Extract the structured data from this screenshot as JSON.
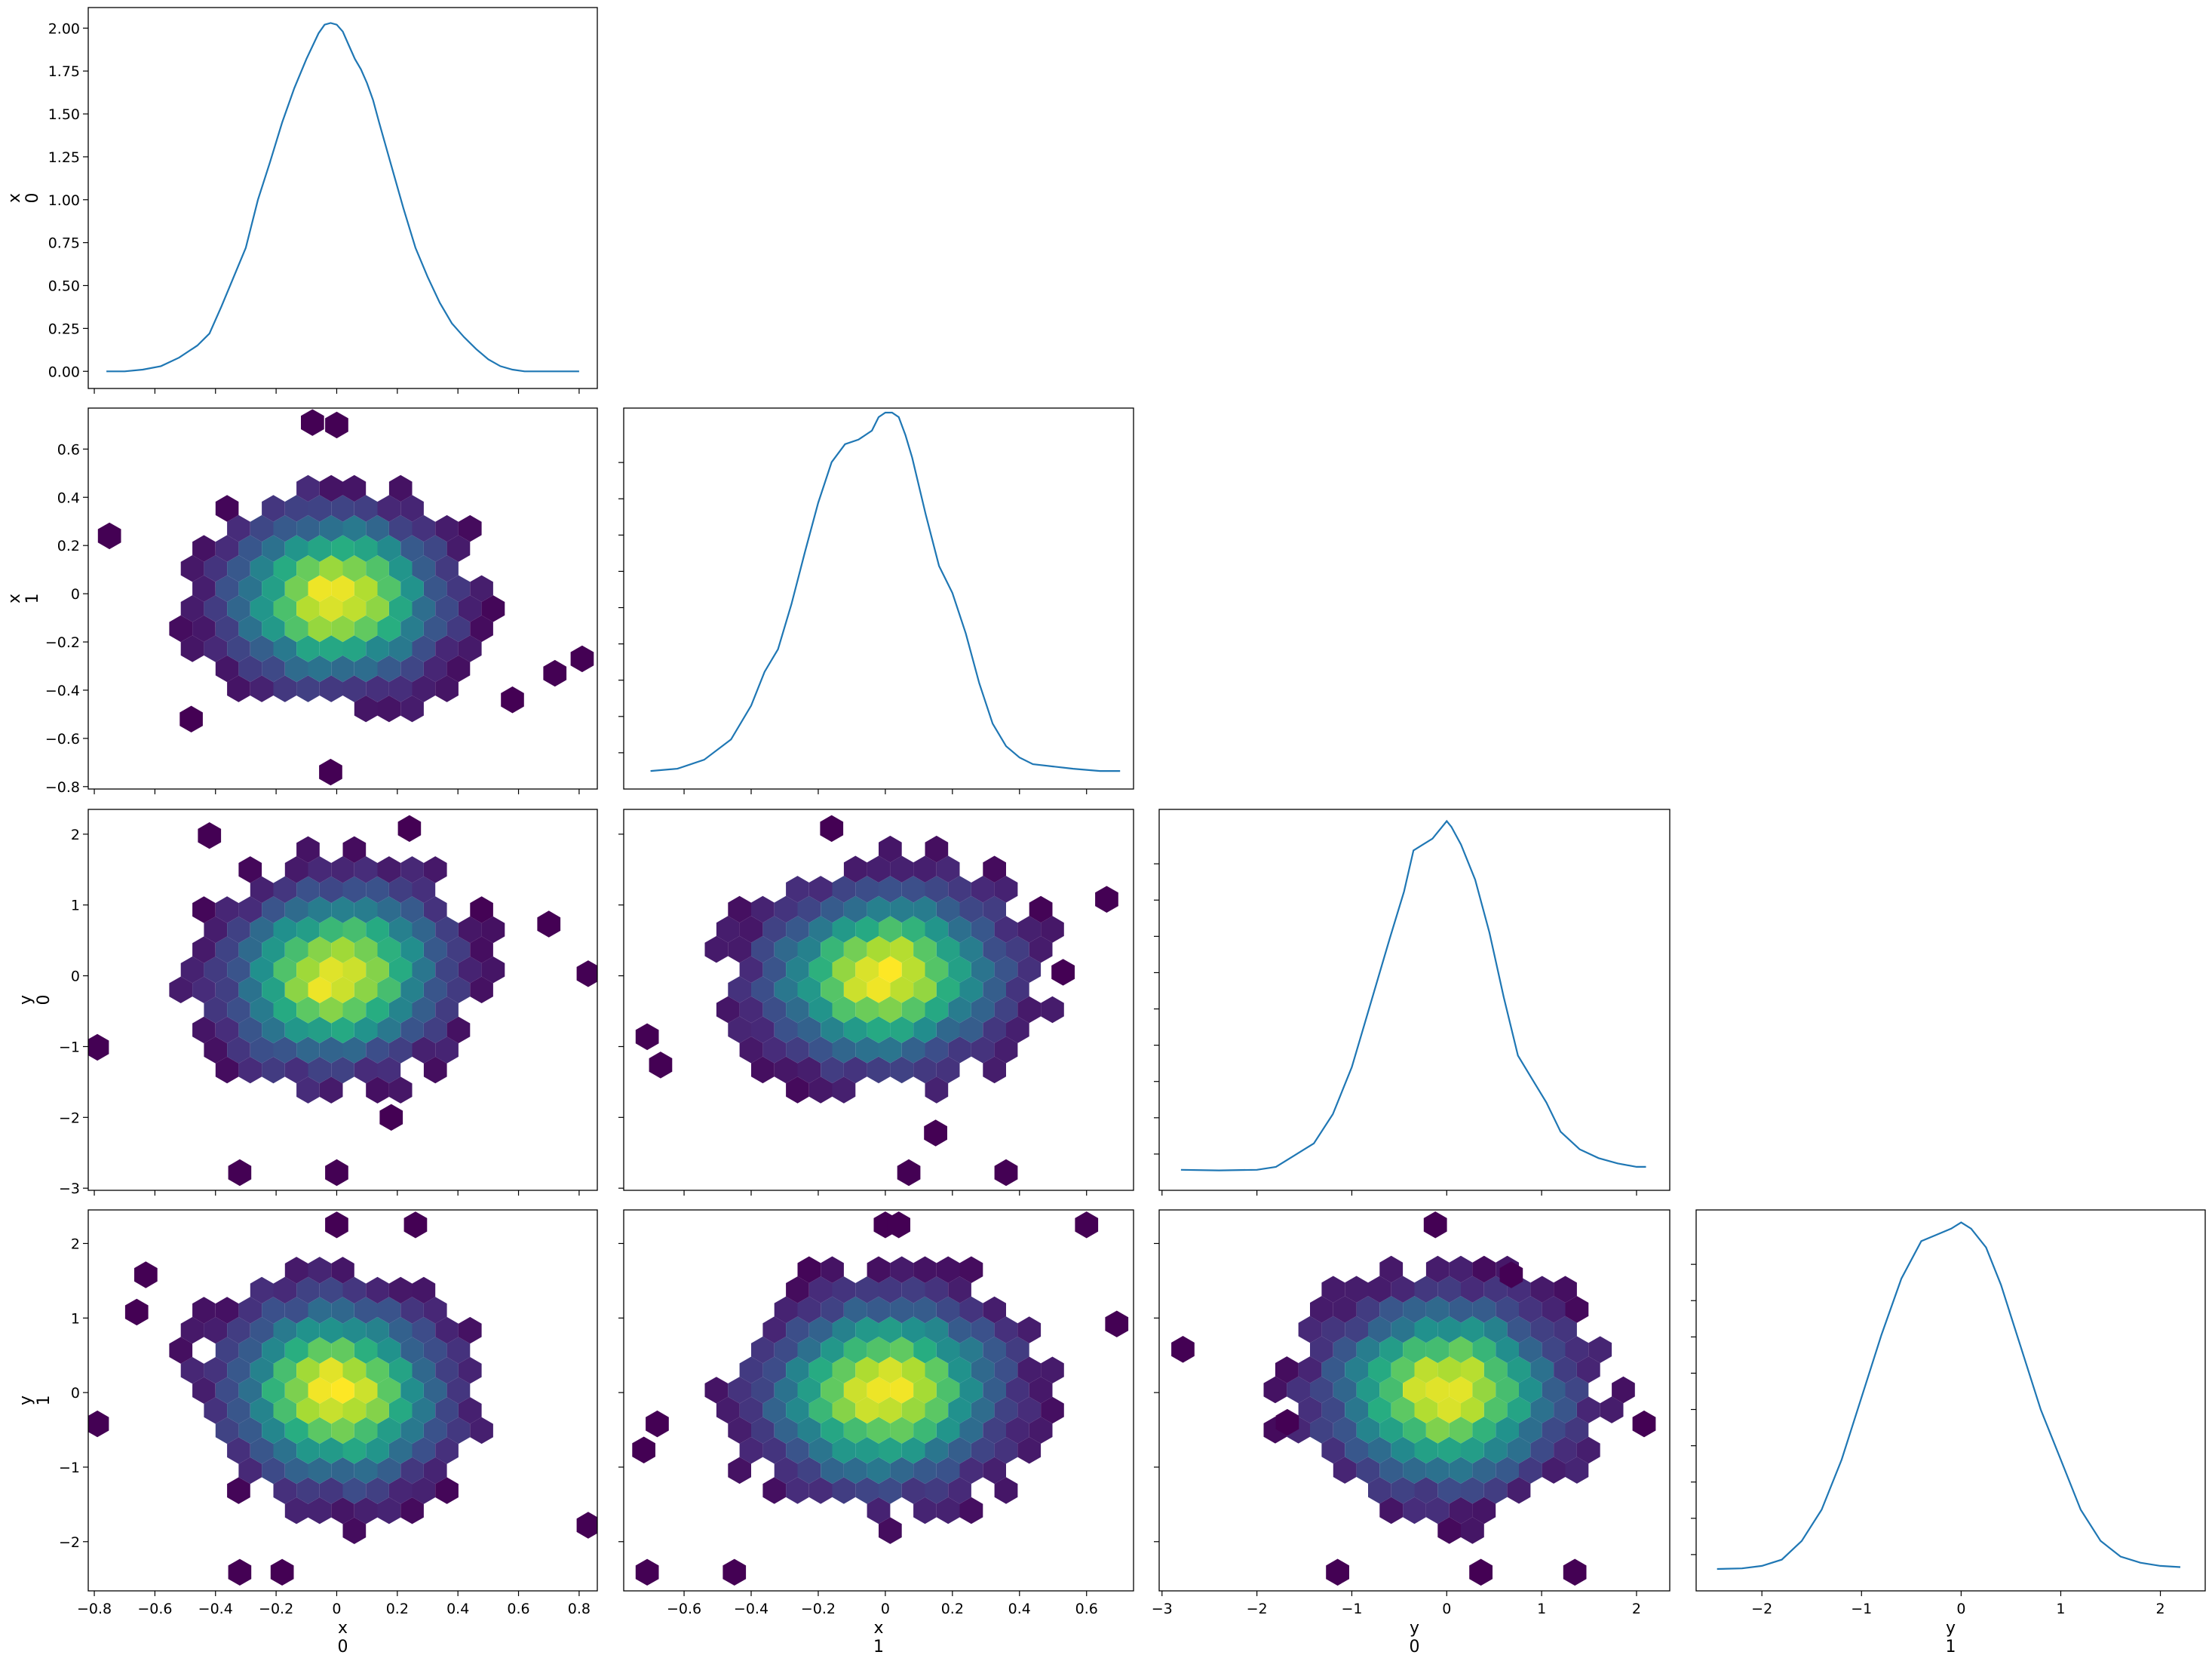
{
  "figure": {
    "type": "pair-plot",
    "colors": {
      "kde_line": "#1f77b4",
      "colormap": "viridis",
      "frame": "#000000"
    }
  },
  "variables": [
    {
      "name": "x",
      "index": "0"
    },
    {
      "name": "x",
      "index": "1"
    },
    {
      "name": "y",
      "index": "0"
    },
    {
      "name": "y",
      "index": "1"
    }
  ],
  "chart_data": [
    {
      "type": "line",
      "kind": "kde",
      "row": 0,
      "col": 0,
      "xlim": [
        -0.82,
        0.86
      ],
      "ylim": [
        -0.1,
        2.12
      ],
      "xticks": [
        -0.8,
        -0.6,
        -0.4,
        -0.2,
        0.0,
        0.2,
        0.4,
        0.6,
        0.8
      ],
      "yticks": [
        "0.00",
        "0.25",
        "0.50",
        "0.75",
        "1.00",
        "1.25",
        "1.50",
        "1.75",
        "2.00"
      ],
      "x": [
        -0.76,
        -0.7,
        -0.64,
        -0.58,
        -0.52,
        -0.46,
        -0.42,
        -0.38,
        -0.34,
        -0.3,
        -0.26,
        -0.22,
        -0.18,
        -0.14,
        -0.1,
        -0.06,
        -0.04,
        -0.02,
        0.0,
        0.02,
        0.04,
        0.06,
        0.08,
        0.1,
        0.12,
        0.14,
        0.18,
        0.22,
        0.26,
        0.3,
        0.34,
        0.38,
        0.42,
        0.46,
        0.5,
        0.54,
        0.58,
        0.62,
        0.68,
        0.74,
        0.8
      ],
      "y": [
        0.0,
        0.0,
        0.01,
        0.03,
        0.08,
        0.15,
        0.22,
        0.38,
        0.55,
        0.72,
        1.0,
        1.22,
        1.45,
        1.65,
        1.82,
        1.97,
        2.02,
        2.03,
        2.02,
        1.98,
        1.9,
        1.82,
        1.76,
        1.68,
        1.58,
        1.45,
        1.2,
        0.95,
        0.72,
        0.55,
        0.4,
        0.28,
        0.2,
        0.13,
        0.07,
        0.03,
        0.01,
        0.0,
        0.0,
        0.0,
        0.0
      ]
    },
    {
      "type": "heatmap",
      "kind": "hexbin",
      "row": 1,
      "col": 0,
      "xlim": [
        -0.82,
        0.86
      ],
      "ylim": [
        -0.81,
        0.77
      ],
      "xticks": [],
      "yticks": [
        -0.8,
        -0.6,
        -0.4,
        -0.2,
        0.0,
        0.2,
        0.4,
        0.6
      ],
      "center": [
        0.0,
        -0.02
      ],
      "sd": [
        0.2,
        0.2
      ],
      "corr": 0.0,
      "outliers": [
        [
          -0.75,
          0.24
        ],
        [
          0.81,
          -0.27
        ],
        [
          0.72,
          -0.33
        ],
        [
          0.58,
          -0.44
        ],
        [
          -0.02,
          -0.74
        ],
        [
          -0.48,
          -0.52
        ],
        [
          -0.08,
          0.71
        ],
        [
          0.0,
          0.7
        ]
      ]
    },
    {
      "type": "heatmap",
      "kind": "hexbin",
      "row": 2,
      "col": 0,
      "xlim": [
        -0.82,
        0.86
      ],
      "ylim": [
        -3.03,
        2.35
      ],
      "xticks": [],
      "yticks": [
        -3,
        -2,
        -1,
        0,
        1,
        2
      ],
      "center": [
        0.0,
        0.0
      ],
      "sd": [
        0.2,
        0.7
      ],
      "corr": 0.08,
      "outliers": [
        [
          -0.79,
          -1.01
        ],
        [
          0.83,
          0.03
        ],
        [
          0.7,
          0.73
        ],
        [
          -0.32,
          -2.78
        ],
        [
          0.0,
          -2.78
        ],
        [
          0.18,
          -2.0
        ],
        [
          -0.42,
          1.98
        ],
        [
          0.24,
          2.08
        ]
      ]
    },
    {
      "type": "heatmap",
      "kind": "hexbin",
      "row": 3,
      "col": 0,
      "xlim": [
        -0.82,
        0.86
      ],
      "ylim": [
        -2.66,
        2.45
      ],
      "xticks": [
        -0.8,
        -0.6,
        -0.4,
        -0.2,
        0.0,
        0.2,
        0.4,
        0.6,
        0.8
      ],
      "yticks": [
        -2,
        -1,
        0,
        1,
        2
      ],
      "center": [
        0.0,
        0.0
      ],
      "sd": [
        0.2,
        0.7
      ],
      "corr": -0.05,
      "outliers": [
        [
          -0.79,
          -0.42
        ],
        [
          0.83,
          -1.78
        ],
        [
          -0.63,
          1.58
        ],
        [
          -0.66,
          1.08
        ],
        [
          -0.32,
          -2.41
        ],
        [
          -0.18,
          -2.41
        ],
        [
          0.26,
          2.25
        ],
        [
          0.0,
          2.25
        ]
      ]
    },
    {
      "type": "line",
      "kind": "kde",
      "row": 1,
      "col": 1,
      "xlim": [
        -0.78,
        0.74
      ],
      "ylim": [
        -0.07,
        1.62
      ],
      "xticks": [],
      "yticks": [],
      "x": [
        -0.7,
        -0.62,
        -0.54,
        -0.46,
        -0.4,
        -0.36,
        -0.32,
        -0.28,
        -0.24,
        -0.2,
        -0.16,
        -0.12,
        -0.08,
        -0.04,
        -0.02,
        0.0,
        0.02,
        0.04,
        0.06,
        0.08,
        0.12,
        0.16,
        0.2,
        0.24,
        0.28,
        0.32,
        0.36,
        0.4,
        0.44,
        0.5,
        0.56,
        0.64,
        0.7
      ],
      "y": [
        0.01,
        0.02,
        0.06,
        0.15,
        0.3,
        0.45,
        0.55,
        0.75,
        0.98,
        1.2,
        1.38,
        1.46,
        1.48,
        1.52,
        1.58,
        1.6,
        1.6,
        1.58,
        1.5,
        1.4,
        1.15,
        0.92,
        0.8,
        0.62,
        0.4,
        0.22,
        0.12,
        0.07,
        0.04,
        0.03,
        0.02,
        0.01,
        0.01
      ]
    },
    {
      "type": "heatmap",
      "kind": "hexbin",
      "row": 2,
      "col": 1,
      "xlim": [
        -0.78,
        0.74
      ],
      "ylim": [
        -3.03,
        2.35
      ],
      "xticks": [],
      "yticks": [],
      "center": [
        0.0,
        0.0
      ],
      "sd": [
        0.2,
        0.7
      ],
      "corr": 0.05,
      "outliers": [
        [
          -0.71,
          -0.86
        ],
        [
          0.66,
          1.08
        ],
        [
          0.53,
          0.05
        ],
        [
          0.07,
          -2.78
        ],
        [
          0.36,
          -2.78
        ],
        [
          0.15,
          -2.22
        ],
        [
          -0.16,
          2.08
        ],
        [
          -0.67,
          -1.26
        ]
      ]
    },
    {
      "type": "heatmap",
      "kind": "hexbin",
      "row": 3,
      "col": 1,
      "xlim": [
        -0.78,
        0.74
      ],
      "ylim": [
        -2.66,
        2.45
      ],
      "xticks": [
        -0.8,
        -0.6,
        -0.4,
        -0.2,
        0.0,
        0.2,
        0.4,
        0.6
      ],
      "yticks": [],
      "center": [
        0.0,
        0.0
      ],
      "sd": [
        0.2,
        0.7
      ],
      "corr": 0.06,
      "outliers": [
        [
          -0.71,
          -2.41
        ],
        [
          -0.45,
          -2.41
        ],
        [
          0.69,
          0.92
        ],
        [
          0.6,
          2.25
        ],
        [
          -0.72,
          -0.77
        ],
        [
          -0.68,
          -0.42
        ],
        [
          0.0,
          2.25
        ],
        [
          0.04,
          2.25
        ]
      ]
    },
    {
      "type": "line",
      "kind": "kde",
      "row": 2,
      "col": 2,
      "xlim": [
        -3.03,
        2.35
      ],
      "ylim": [
        -0.03,
        0.62
      ],
      "xticks": [],
      "yticks": [],
      "x": [
        -2.8,
        -2.4,
        -2.0,
        -1.8,
        -1.6,
        -1.4,
        -1.2,
        -1.0,
        -0.8,
        -0.6,
        -0.45,
        -0.35,
        -0.25,
        -0.15,
        -0.05,
        0.0,
        0.05,
        0.15,
        0.3,
        0.45,
        0.6,
        0.75,
        0.9,
        1.05,
        1.2,
        1.4,
        1.6,
        1.8,
        2.0,
        2.1
      ],
      "y": [
        0.005,
        0.004,
        0.005,
        0.01,
        0.03,
        0.05,
        0.1,
        0.18,
        0.29,
        0.4,
        0.48,
        0.55,
        0.56,
        0.57,
        0.59,
        0.6,
        0.59,
        0.56,
        0.5,
        0.41,
        0.3,
        0.2,
        0.16,
        0.12,
        0.07,
        0.04,
        0.025,
        0.016,
        0.01,
        0.01
      ]
    },
    {
      "type": "heatmap",
      "kind": "hexbin",
      "row": 3,
      "col": 2,
      "xlim": [
        -3.03,
        2.35
      ],
      "ylim": [
        -2.66,
        2.45
      ],
      "xticks": [
        -3,
        -2,
        -1,
        0,
        1,
        2
      ],
      "yticks": [],
      "center": [
        0.0,
        0.0
      ],
      "sd": [
        0.7,
        0.7
      ],
      "corr": 0.0,
      "outliers": [
        [
          -2.78,
          0.58
        ],
        [
          -1.68,
          -0.4
        ],
        [
          2.08,
          -0.42
        ],
        [
          1.35,
          -2.41
        ],
        [
          -1.15,
          -2.41
        ],
        [
          0.36,
          -2.41
        ],
        [
          -0.12,
          2.25
        ],
        [
          0.68,
          1.58
        ]
      ]
    },
    {
      "type": "line",
      "kind": "kde",
      "row": 3,
      "col": 3,
      "xlim": [
        -2.66,
        2.45
      ],
      "ylim": [
        -0.03,
        0.58
      ],
      "xticks": [
        -2,
        -1,
        0,
        1,
        2
      ],
      "yticks": [],
      "x": [
        -2.45,
        -2.2,
        -2.0,
        -1.8,
        -1.6,
        -1.4,
        -1.2,
        -1.0,
        -0.8,
        -0.6,
        -0.4,
        -0.25,
        -0.1,
        0.0,
        0.1,
        0.25,
        0.4,
        0.6,
        0.8,
        1.0,
        1.2,
        1.4,
        1.6,
        1.8,
        2.0,
        2.2
      ],
      "y": [
        0.005,
        0.006,
        0.01,
        0.02,
        0.05,
        0.1,
        0.18,
        0.28,
        0.38,
        0.47,
        0.53,
        0.54,
        0.55,
        0.56,
        0.55,
        0.52,
        0.46,
        0.36,
        0.26,
        0.18,
        0.1,
        0.05,
        0.025,
        0.015,
        0.01,
        0.008
      ]
    }
  ]
}
